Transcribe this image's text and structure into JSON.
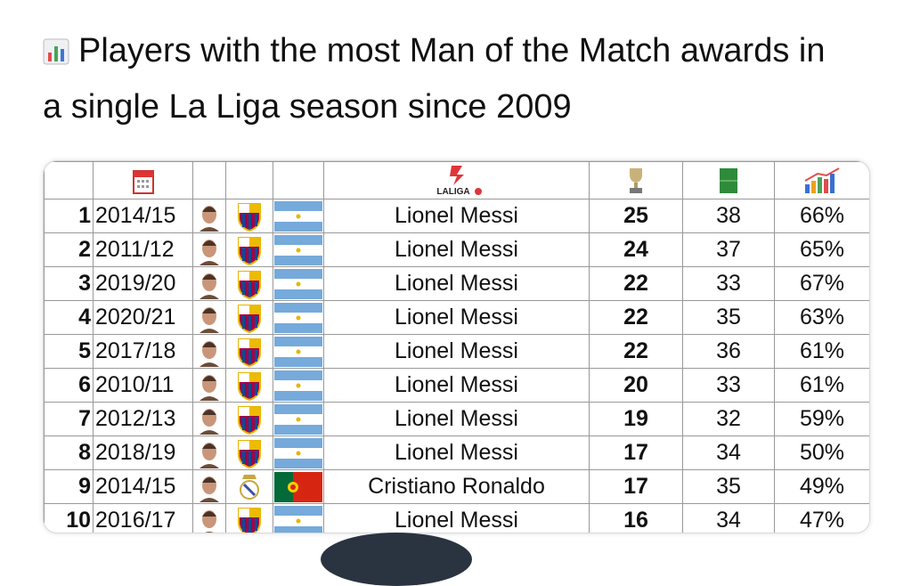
{
  "header": {
    "title": "Players with the most Man of the Match awards in a single La Liga season since 2009"
  },
  "table": {
    "logo_text": "LALIGA",
    "rows": [
      [
        1,
        "2014/15",
        "Lionel Messi",
        25,
        38,
        "66%"
      ],
      [
        2,
        "2011/12",
        "Lionel Messi",
        24,
        37,
        "65%"
      ],
      [
        3,
        "2019/20",
        "Lionel Messi",
        22,
        33,
        "67%"
      ],
      [
        4,
        "2020/21",
        "Lionel Messi",
        22,
        35,
        "63%"
      ],
      [
        5,
        "2017/18",
        "Lionel Messi",
        22,
        36,
        "61%"
      ],
      [
        6,
        "2010/11",
        "Lionel Messi",
        20,
        33,
        "61%"
      ],
      [
        7,
        "2012/13",
        "Lionel Messi",
        19,
        32,
        "59%"
      ],
      [
        8,
        "2018/19",
        "Lionel Messi",
        17,
        34,
        "50%"
      ],
      [
        9,
        "2014/15",
        "Cristiano Ronaldo",
        17,
        35,
        "49%"
      ],
      [
        10,
        "2016/17",
        "Lionel Messi",
        16,
        34,
        "47%"
      ]
    ]
  }
}
